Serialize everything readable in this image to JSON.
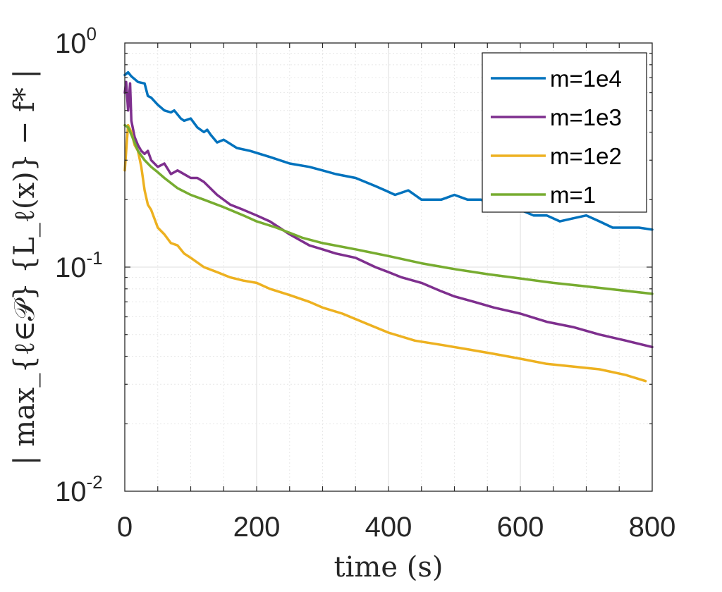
{
  "chart_data": {
    "type": "line",
    "xlabel": "time (s)",
    "ylabel": "| max_{ℓ∈𝒫} {L_ℓ(x)} − f* |",
    "xlim": [
      0,
      800
    ],
    "ylim": [
      0.01,
      1
    ],
    "yscale": "log",
    "grid": true,
    "minor_grid": true,
    "legend_position": "top-right",
    "x_ticks": [
      {
        "value": 0,
        "label": "0"
      },
      {
        "value": 200,
        "label": "200"
      },
      {
        "value": 400,
        "label": "400"
      },
      {
        "value": 600,
        "label": "600"
      },
      {
        "value": 800,
        "label": "800"
      }
    ],
    "y_ticks": [
      {
        "value": 1,
        "base": "10",
        "exponent": "0"
      },
      {
        "value": 0.1,
        "base": "10",
        "exponent": "-1"
      },
      {
        "value": 0.01,
        "base": "10",
        "exponent": "-2"
      }
    ],
    "series": [
      {
        "name": "m=1e4",
        "color": "#0072BD",
        "x": [
          0,
          5,
          10,
          20,
          30,
          35,
          40,
          50,
          60,
          70,
          75,
          85,
          90,
          100,
          110,
          120,
          125,
          130,
          140,
          150,
          170,
          190,
          220,
          250,
          280,
          300,
          320,
          350,
          380,
          395,
          410,
          430,
          450,
          480,
          500,
          520,
          540,
          560,
          580,
          600,
          620,
          640,
          660,
          680,
          700,
          720,
          740,
          760,
          780,
          800
        ],
        "y": [
          0.72,
          0.74,
          0.71,
          0.67,
          0.66,
          0.58,
          0.57,
          0.53,
          0.5,
          0.49,
          0.5,
          0.46,
          0.45,
          0.46,
          0.42,
          0.4,
          0.41,
          0.39,
          0.36,
          0.37,
          0.34,
          0.33,
          0.31,
          0.29,
          0.28,
          0.27,
          0.26,
          0.25,
          0.23,
          0.22,
          0.21,
          0.22,
          0.2,
          0.2,
          0.21,
          0.2,
          0.2,
          0.19,
          0.19,
          0.18,
          0.17,
          0.17,
          0.16,
          0.165,
          0.17,
          0.16,
          0.15,
          0.15,
          0.15,
          0.147
        ]
      },
      {
        "name": "m=1e3",
        "color": "#7E2F8E",
        "x": [
          0,
          2,
          5,
          8,
          10,
          12,
          15,
          20,
          25,
          30,
          35,
          40,
          50,
          60,
          70,
          80,
          100,
          110,
          120,
          140,
          160,
          180,
          200,
          220,
          250,
          280,
          300,
          320,
          350,
          380,
          400,
          420,
          450,
          480,
          500,
          530,
          560,
          600,
          640,
          680,
          720,
          760,
          800
        ],
        "y": [
          0.6,
          0.67,
          0.5,
          0.66,
          0.45,
          0.42,
          0.38,
          0.35,
          0.33,
          0.32,
          0.33,
          0.3,
          0.28,
          0.29,
          0.26,
          0.27,
          0.25,
          0.25,
          0.24,
          0.21,
          0.19,
          0.18,
          0.17,
          0.16,
          0.14,
          0.125,
          0.12,
          0.115,
          0.11,
          0.1,
          0.095,
          0.09,
          0.085,
          0.078,
          0.074,
          0.07,
          0.066,
          0.062,
          0.057,
          0.054,
          0.05,
          0.047,
          0.044
        ]
      },
      {
        "name": "m=1e2",
        "color": "#EDB120",
        "x": [
          0,
          3,
          5,
          10,
          15,
          20,
          25,
          30,
          35,
          40,
          50,
          60,
          70,
          80,
          90,
          100,
          120,
          140,
          160,
          180,
          200,
          220,
          250,
          280,
          300,
          330,
          360,
          400,
          440,
          480,
          520,
          560,
          600,
          640,
          680,
          720,
          760,
          790
        ],
        "y": [
          0.27,
          0.36,
          0.43,
          0.4,
          0.35,
          0.33,
          0.28,
          0.22,
          0.19,
          0.18,
          0.15,
          0.14,
          0.128,
          0.125,
          0.115,
          0.11,
          0.1,
          0.095,
          0.09,
          0.087,
          0.085,
          0.08,
          0.075,
          0.07,
          0.066,
          0.062,
          0.057,
          0.051,
          0.047,
          0.045,
          0.043,
          0.041,
          0.039,
          0.037,
          0.036,
          0.035,
          0.033,
          0.031
        ]
      },
      {
        "name": "m=1",
        "color": "#77AC30",
        "x": [
          0,
          5,
          10,
          20,
          30,
          40,
          50,
          60,
          80,
          100,
          120,
          150,
          180,
          200,
          230,
          270,
          300,
          350,
          400,
          450,
          500,
          550,
          600,
          650,
          700,
          750,
          800
        ],
        "y": [
          0.43,
          0.42,
          0.39,
          0.33,
          0.3,
          0.28,
          0.265,
          0.25,
          0.225,
          0.21,
          0.2,
          0.185,
          0.17,
          0.16,
          0.15,
          0.135,
          0.128,
          0.12,
          0.112,
          0.104,
          0.098,
          0.093,
          0.089,
          0.085,
          0.082,
          0.079,
          0.076
        ]
      }
    ]
  }
}
